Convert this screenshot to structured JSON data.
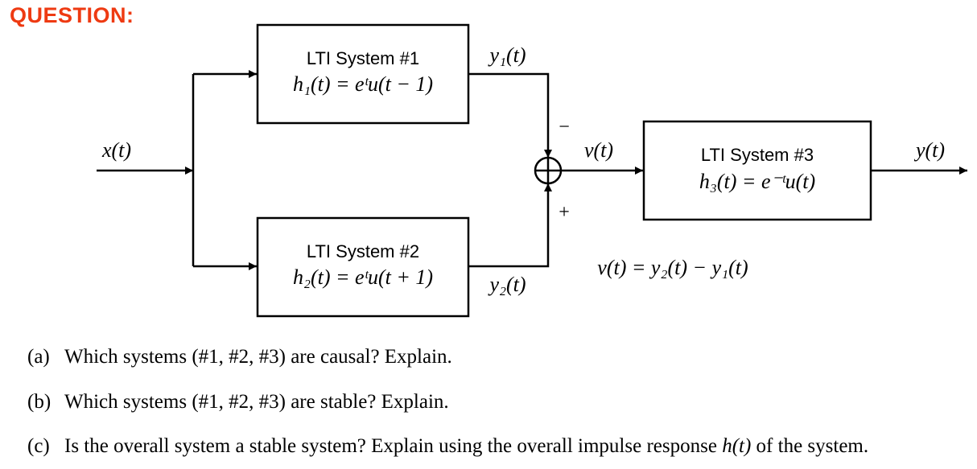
{
  "heading": "QUESTION:",
  "diagram": {
    "system1": {
      "title": "LTI System #1",
      "impulse": "h₁(t) = eᵗu(t − 1)"
    },
    "system2": {
      "title": "LTI System #2",
      "impulse": "h₂(t) = eᵗu(t + 1)"
    },
    "system3": {
      "title": "LTI System #3",
      "impulse": "h₃(t) = e⁻ᵗu(t)"
    },
    "input_label": "x(t)",
    "y1_label": "y₁(t)",
    "y2_label": "y₂(t)",
    "v_label": "v(t)",
    "output_label": "y(t)",
    "minus_sign": "−",
    "plus_sign": "+",
    "relation": "v(t) = y₂(t) − y₁(t)"
  },
  "questions": [
    {
      "label": "(a)",
      "text": "Which systems (#1, #2, #3) are causal? Explain."
    },
    {
      "label": "(b)",
      "text": "Which systems (#1, #2, #3) are stable? Explain."
    },
    {
      "label": "(c)",
      "text_before": "Is the overall system a stable system? Explain using the overall impulse response ",
      "math": "h(t)",
      "text_after": " of the system."
    }
  ]
}
